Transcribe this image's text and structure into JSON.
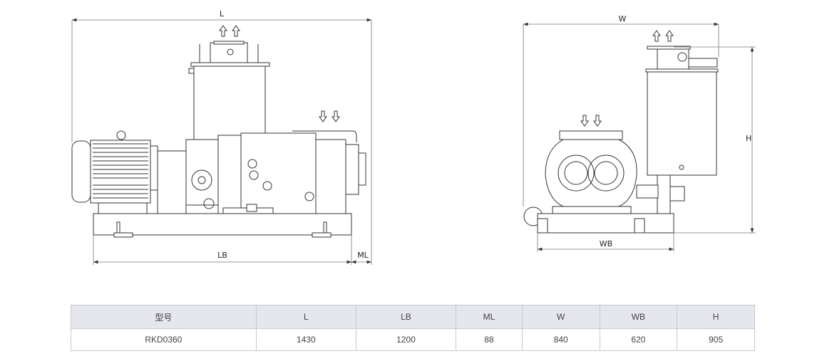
{
  "drawing": {
    "side_view": {
      "dim_L": "L",
      "dim_LB": "LB",
      "dim_ML": "ML"
    },
    "front_view": {
      "dim_W": "W",
      "dim_WB": "WB",
      "dim_H": "H"
    },
    "flow_arrows": {
      "outlet": "up",
      "inlet": "down"
    }
  },
  "table": {
    "headers": [
      "型号",
      "L",
      "LB",
      "ML",
      "W",
      "WB",
      "H"
    ],
    "rows": [
      [
        "RKD0360",
        "1430",
        "1200",
        "88",
        "840",
        "620",
        "905"
      ]
    ]
  },
  "colors": {
    "header_bg": "#e6e6ee",
    "line": "#333333"
  }
}
